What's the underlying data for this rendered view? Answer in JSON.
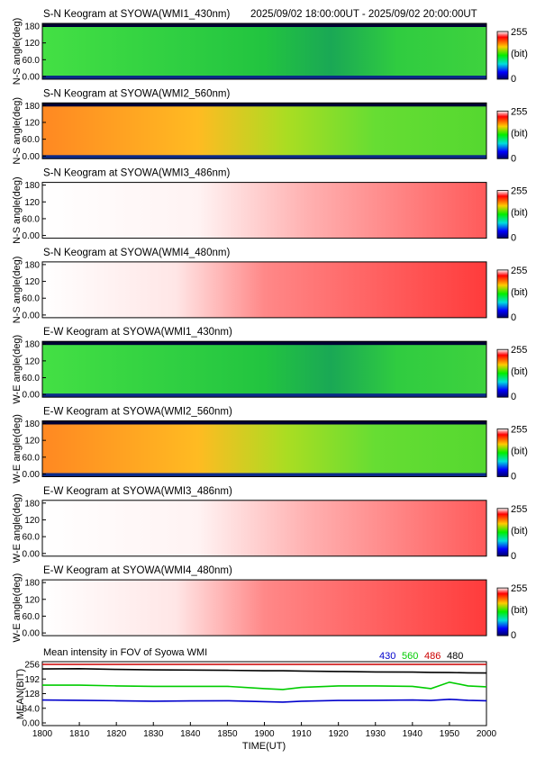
{
  "header": {
    "time_range": "2025/09/02 18:00:00UT - 2025/09/02 20:00:00UT"
  },
  "colorbar": {
    "max_label": "255",
    "unit_label": "(bit)",
    "min_label": "0"
  },
  "keograms": [
    {
      "title": "S-N Keogram at SYOWA(WMI1_430nm)",
      "ylabel": "N-S angle(deg)",
      "ticks": [
        "0.00",
        "60.0",
        "120",
        "180"
      ],
      "palette": "green"
    },
    {
      "title": "S-N Keogram at SYOWA(WMI2_560nm)",
      "ylabel": "N-S angle(deg)",
      "ticks": [
        "0.00",
        "60.0",
        "120",
        "180"
      ],
      "palette": "orange"
    },
    {
      "title": "S-N Keogram at SYOWA(WMI3_486nm)",
      "ylabel": "N-S angle(deg)",
      "ticks": [
        "0.00",
        "60.0",
        "120",
        "180"
      ],
      "palette": "white-red"
    },
    {
      "title": "S-N Keogram at SYOWA(WMI4_480nm)",
      "ylabel": "N-S angle(deg)",
      "ticks": [
        "0.00",
        "60.0",
        "120",
        "180"
      ],
      "palette": "white-red-strong"
    },
    {
      "title": "E-W Keogram at SYOWA(WMI1_430nm)",
      "ylabel": "W-E angle(deg)",
      "ticks": [
        "0.00",
        "60.0",
        "120",
        "180"
      ],
      "palette": "green"
    },
    {
      "title": "E-W Keogram at SYOWA(WMI2_560nm)",
      "ylabel": "W-E angle(deg)",
      "ticks": [
        "0.00",
        "60.0",
        "120",
        "180"
      ],
      "palette": "orange"
    },
    {
      "title": "E-W Keogram at SYOWA(WMI3_486nm)",
      "ylabel": "W-E angle(deg)",
      "ticks": [
        "0.00",
        "60.0",
        "120",
        "180"
      ],
      "palette": "white-red"
    },
    {
      "title": "E-W Keogram at SYOWA(WMI4_480nm)",
      "ylabel": "W-E angle(deg)",
      "ticks": [
        "0.00",
        "60.0",
        "120",
        "180"
      ],
      "palette": "white-red-strong"
    }
  ],
  "colors": {
    "c430": "#0000cc",
    "c560": "#00cc00",
    "c486": "#cc0000",
    "c480": "#000000"
  },
  "chart_data": {
    "type": "line",
    "title": "Mean intensity in FOV of Syowa WMI",
    "xlabel": "TIME(UT)",
    "ylabel": "MEAN(BIT)",
    "ylim": [
      0,
      256
    ],
    "xlim": [
      1800,
      2000
    ],
    "x_ticks": [
      "1800",
      "1810",
      "1820",
      "1830",
      "1840",
      "1850",
      "1900",
      "1910",
      "1920",
      "1930",
      "1940",
      "1950",
      "2000"
    ],
    "y_ticks": [
      "0.00",
      "64.0",
      "128",
      "192",
      "256"
    ],
    "x": [
      1800,
      1810,
      1820,
      1830,
      1840,
      1850,
      1900,
      1905,
      1910,
      1920,
      1930,
      1940,
      1945,
      1950,
      1955,
      2000
    ],
    "series": [
      {
        "name": "430",
        "color": "#0000cc",
        "values": [
          100,
          99,
          97,
          95,
          96,
          97,
          93,
          91,
          95,
          98,
          99,
          100,
          98,
          103,
          99,
          97
        ]
      },
      {
        "name": "560",
        "color": "#00cc00",
        "values": [
          165,
          165,
          162,
          160,
          160,
          160,
          150,
          146,
          155,
          162,
          162,
          160,
          150,
          178,
          162,
          158
        ]
      },
      {
        "name": "486",
        "color": "#cc0000",
        "values": [
          256,
          256,
          256,
          256,
          256,
          256,
          256,
          256,
          256,
          256,
          256,
          256,
          256,
          256,
          256,
          256
        ]
      },
      {
        "name": "480",
        "color": "#000000",
        "values": [
          236,
          237,
          234,
          232,
          231,
          230,
          228,
          228,
          227,
          225,
          223,
          222,
          221,
          220,
          219,
          218
        ]
      }
    ]
  }
}
